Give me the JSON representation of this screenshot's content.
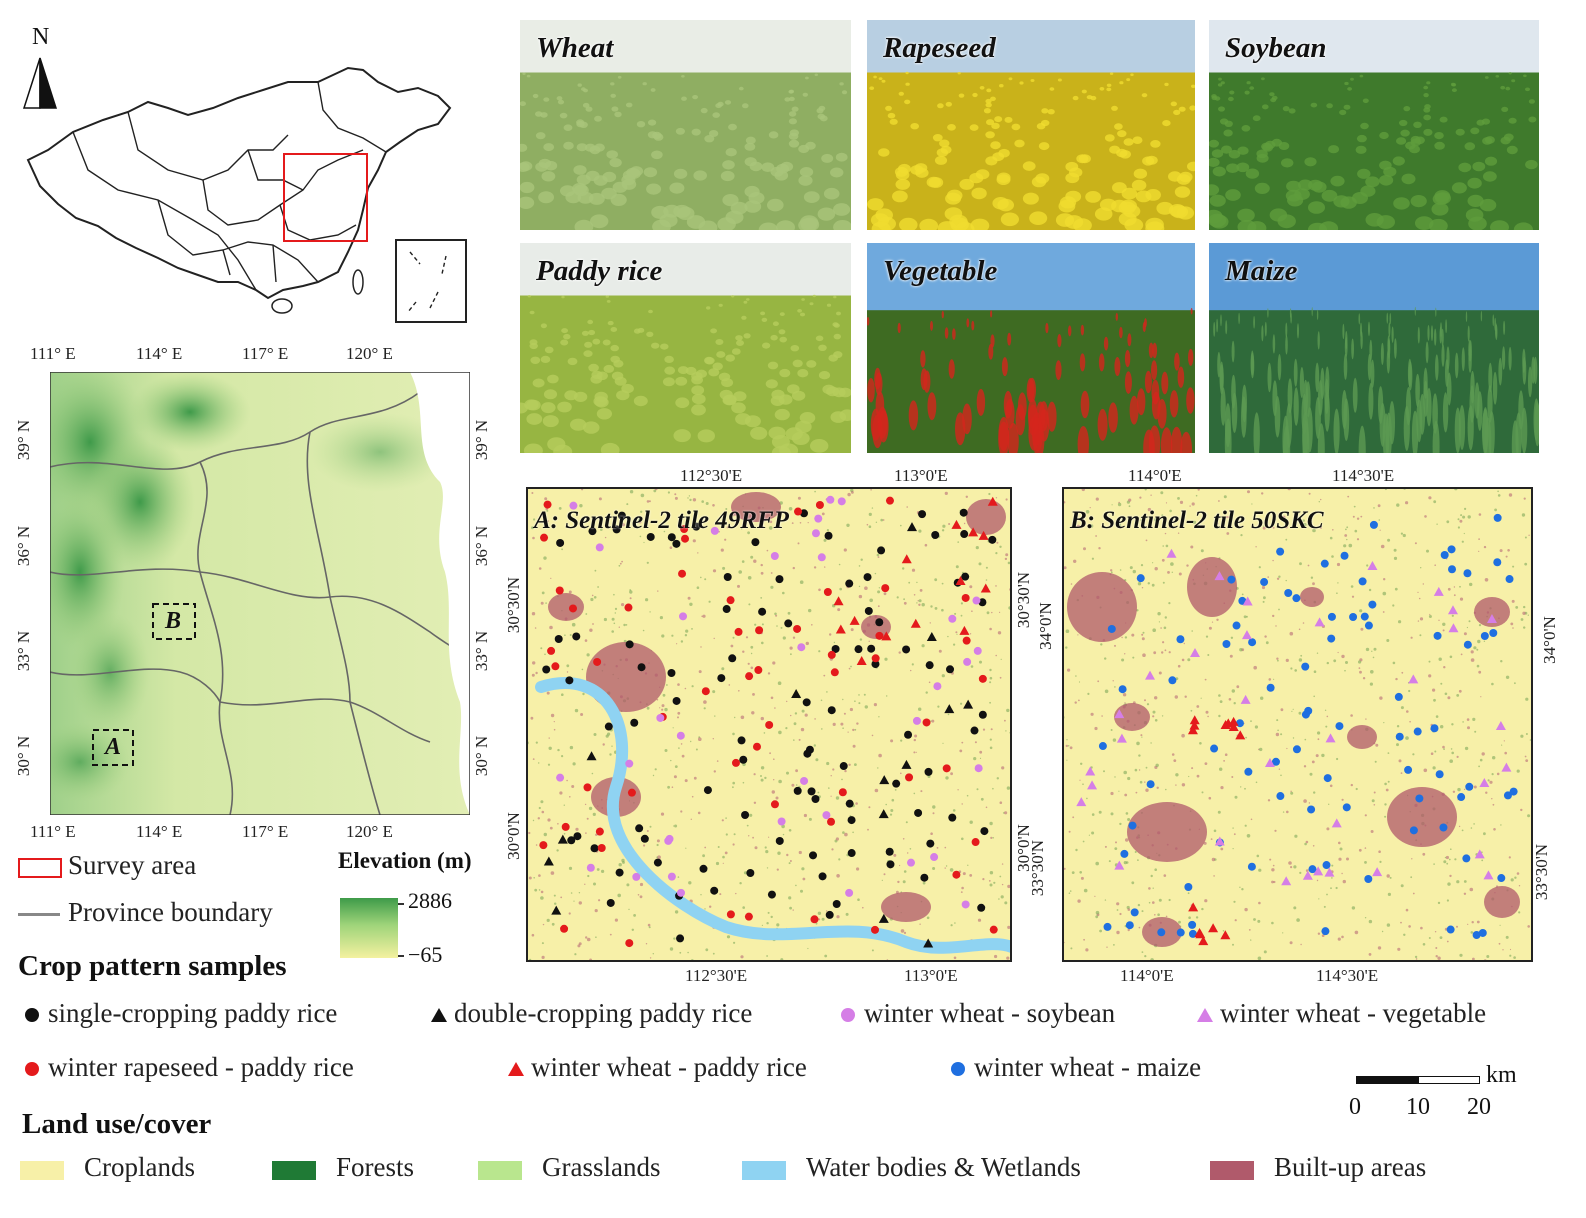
{
  "overview": {
    "north_label": "N",
    "survey_box_color": "#e41a1c"
  },
  "elevation_map": {
    "top_lon_labels": [
      "111° E",
      "114° E",
      "117° E",
      "120° E"
    ],
    "bottom_lon_labels": [
      "111° E",
      "114° E",
      "117° E",
      "120° E"
    ],
    "lat_labels": [
      "39° N",
      "36° N",
      "33° N",
      "30° N"
    ],
    "area_a": "A",
    "area_b": "B"
  },
  "elevation_legend": {
    "survey_area": "Survey area",
    "province_boundary": "Province boundary",
    "title": "Elevation (m)",
    "max": "2886",
    "min": "−65"
  },
  "photos": [
    {
      "label": "Wheat",
      "sky": "#e9ede6",
      "field": "#8fae62",
      "accent": "#a9c47a"
    },
    {
      "label": "Rapeseed",
      "sky": "#b8cfe2",
      "field": "#c9b21a",
      "accent": "#f0dc30"
    },
    {
      "label": "Soybean",
      "sky": "#dfe7ee",
      "field": "#3f7a2c",
      "accent": "#5f9c3c"
    },
    {
      "label": "Paddy rice",
      "sky": "#e8ece8",
      "field": "#97b542",
      "accent": "#b6cd5c"
    },
    {
      "label": "Vegetable",
      "sky": "#6fa9dd",
      "field": "#3e6b22",
      "accent": "#d4261d"
    },
    {
      "label": "Maize",
      "sky": "#5b9ad6",
      "field": "#2f6a3a",
      "accent": "#5d9a52"
    }
  ],
  "map_a": {
    "title": "A: Sentinel-2 tile 49RFP",
    "top_labels": [
      "112°30'E",
      "113°0'E"
    ],
    "bottom_labels": [
      "112°30'E",
      "113°0'E"
    ],
    "left_labels": [
      "30°30'N",
      "30°0'N"
    ],
    "right_labels": [
      "30°30'N",
      "30°0'N"
    ]
  },
  "map_b": {
    "title": "B: Sentinel-2 tile 50SKC",
    "top_labels": [
      "114°0'E",
      "114°30'E"
    ],
    "bottom_labels": [
      "114°0'E",
      "114°30'E"
    ],
    "left_labels": [
      "34°0'N",
      "33°30'N"
    ],
    "right_labels": [
      "34°0'N",
      "33°30'N"
    ]
  },
  "samples_legend": {
    "title": "Crop pattern samples",
    "items": [
      {
        "label": "single-cropping paddy rice",
        "shape": "circle",
        "color": "#111111"
      },
      {
        "label": "double-cropping paddy rice",
        "shape": "triangle",
        "color": "#111111"
      },
      {
        "label": "winter wheat - soybean",
        "shape": "circle",
        "color": "#d57ee6"
      },
      {
        "label": "winter wheat - vegetable",
        "shape": "triangle",
        "color": "#d57ee6"
      },
      {
        "label": "winter rapeseed - paddy rice",
        "shape": "circle",
        "color": "#e41a1c"
      },
      {
        "label": "winter wheat - paddy rice",
        "shape": "triangle",
        "color": "#e41a1c"
      },
      {
        "label": "winter wheat - maize",
        "shape": "circle",
        "color": "#1f6fe0"
      }
    ]
  },
  "scale_bar": {
    "unit": "km",
    "ticks": [
      "0",
      "10",
      "20"
    ]
  },
  "landcover_legend": {
    "title": "Land use/cover",
    "items": [
      {
        "label": "Croplands",
        "color": "#f7f0a8"
      },
      {
        "label": "Forests",
        "color": "#1f7a35"
      },
      {
        "label": "Grasslands",
        "color": "#b9e68e"
      },
      {
        "label": "Water bodies & Wetlands",
        "color": "#8fd3f2"
      },
      {
        "label": "Built-up areas",
        "color": "#b05a6b"
      }
    ]
  }
}
